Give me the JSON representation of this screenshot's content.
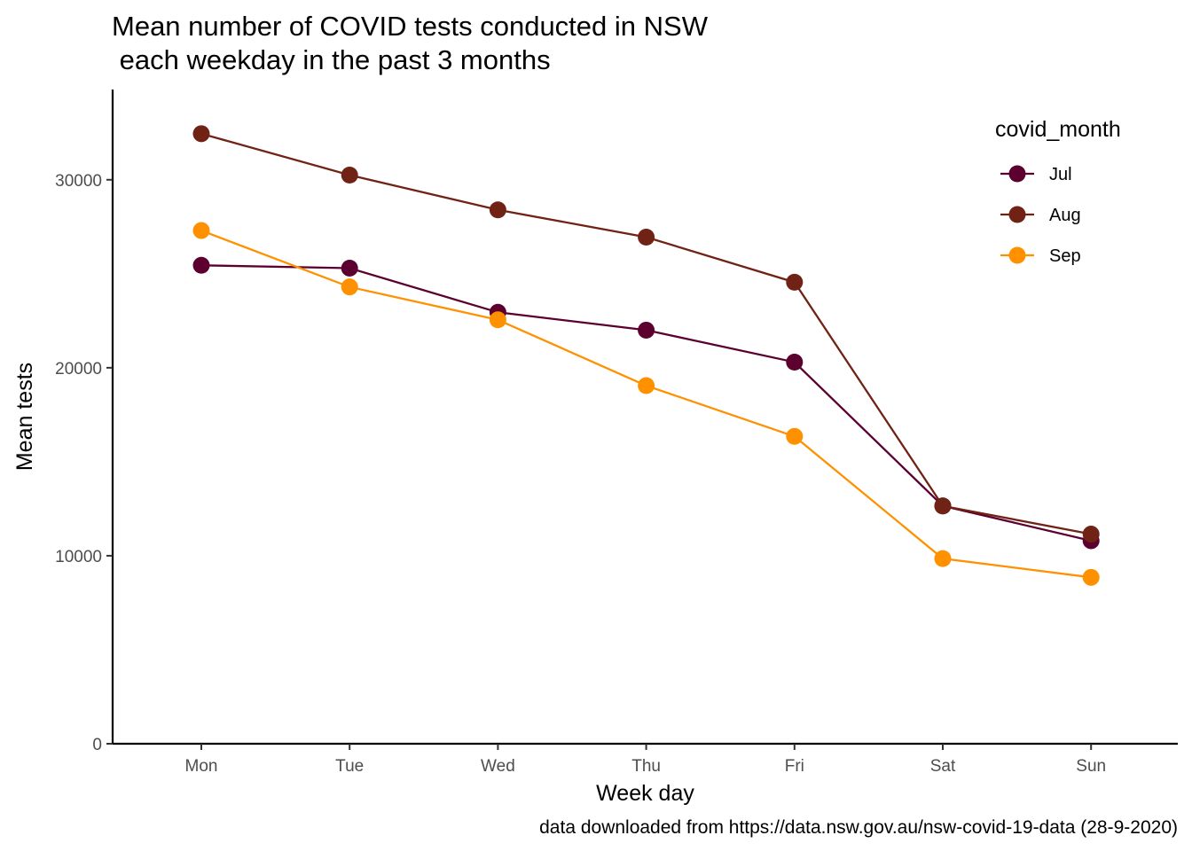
{
  "chart_data": {
    "type": "line",
    "title_lines": [
      "Mean number of COVID tests conducted in NSW",
      " each weekday in the past 3 months"
    ],
    "xlabel": "Week day",
    "ylabel": "Mean tests",
    "caption": "data downloaded from https://data.nsw.gov.au/nsw-covid-19-data (28-9-2020)",
    "categories": [
      "Mon",
      "Tue",
      "Wed",
      "Thu",
      "Fri",
      "Sat",
      "Sun"
    ],
    "y_ticks": [
      0,
      10000,
      20000,
      30000
    ],
    "ylim": [
      0,
      34800
    ],
    "grid": false,
    "legend": {
      "title": "covid_month",
      "position": "top-right"
    },
    "series": [
      {
        "name": "Jul",
        "color": "#5c0030",
        "values": [
          25450,
          25300,
          22950,
          22000,
          20300,
          12650,
          10800
        ]
      },
      {
        "name": "Aug",
        "color": "#702215",
        "values": [
          32450,
          30250,
          28400,
          26950,
          24550,
          12650,
          11150
        ]
      },
      {
        "name": "Sep",
        "color": "#ff9100",
        "values": [
          27300,
          24300,
          22550,
          19050,
          16350,
          9850,
          8850
        ]
      }
    ]
  }
}
